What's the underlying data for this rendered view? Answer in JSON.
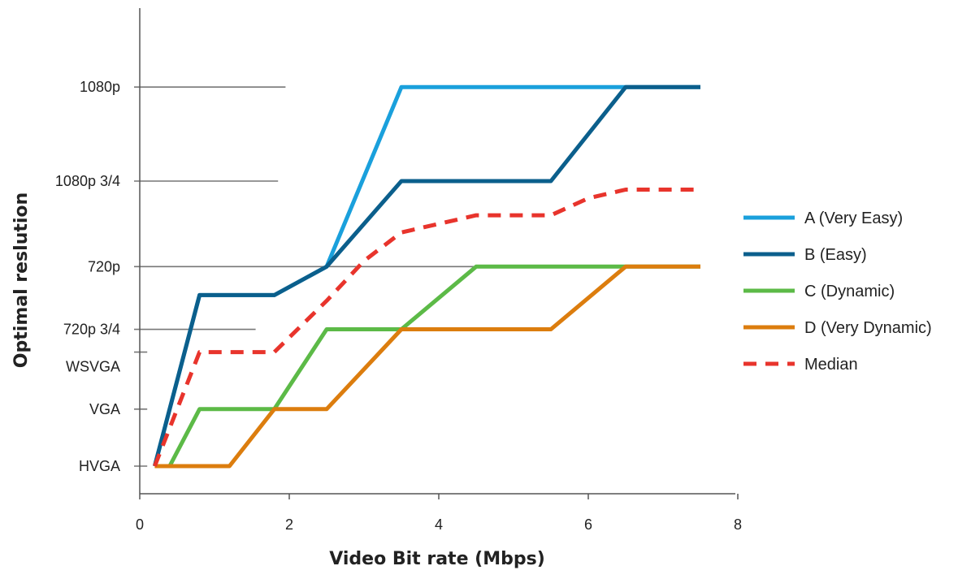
{
  "chart_data": {
    "type": "line",
    "title": "",
    "xlabel": "Video Bit rate (Mbps)",
    "ylabel": "Optimal reslution",
    "xlim": [
      0,
      8
    ],
    "x_ticks": [
      "0",
      "2",
      "4",
      "6",
      "8"
    ],
    "y_categories": [
      {
        "label": "HVGA",
        "level": 0
      },
      {
        "label": "VGA",
        "level": 1
      },
      {
        "label": "WSVGA",
        "level": 2
      },
      {
        "label": "720p 3/4",
        "level": 2.4
      },
      {
        "label": "720p",
        "level": 3.5
      },
      {
        "label": "1080p 3/4",
        "level": 5.0
      },
      {
        "label": "1080p",
        "level": 6.65
      }
    ],
    "series": [
      {
        "name": "A (Very Easy)",
        "color": "#1aa0dc",
        "dash": false,
        "points": [
          [
            0.2,
            0
          ],
          [
            0.8,
            3.0
          ],
          [
            1.8,
            3.0
          ],
          [
            2.5,
            3.5
          ],
          [
            3.5,
            6.65
          ],
          [
            6.5,
            6.65
          ],
          [
            7.5,
            6.65
          ]
        ]
      },
      {
        "name": "B (Easy)",
        "color": "#0b5f8c",
        "dash": false,
        "points": [
          [
            0.2,
            0
          ],
          [
            0.8,
            3.0
          ],
          [
            1.8,
            3.0
          ],
          [
            2.5,
            3.5
          ],
          [
            3.5,
            5.0
          ],
          [
            5.5,
            5.0
          ],
          [
            6.5,
            6.65
          ],
          [
            7.5,
            6.65
          ]
        ]
      },
      {
        "name": "C (Dynamic)",
        "color": "#5cba47",
        "dash": false,
        "points": [
          [
            0.4,
            0
          ],
          [
            0.8,
            1.0
          ],
          [
            1.8,
            1.0
          ],
          [
            2.5,
            2.4
          ],
          [
            3.5,
            2.4
          ],
          [
            4.5,
            3.5
          ],
          [
            7.5,
            3.5
          ]
        ]
      },
      {
        "name": "D (Very Dynamic)",
        "color": "#dc7d0e",
        "dash": false,
        "points": [
          [
            0.2,
            0
          ],
          [
            1.2,
            0
          ],
          [
            1.8,
            1.0
          ],
          [
            2.5,
            1.0
          ],
          [
            3.5,
            2.4
          ],
          [
            5.5,
            2.4
          ],
          [
            6.5,
            3.5
          ],
          [
            7.5,
            3.5
          ]
        ]
      },
      {
        "name": "Median",
        "color": "#e8342c",
        "dash": true,
        "points": [
          [
            0.2,
            0
          ],
          [
            0.8,
            2.0
          ],
          [
            1.8,
            2.0
          ],
          [
            2.5,
            2.9
          ],
          [
            3.0,
            3.6
          ],
          [
            3.5,
            4.1
          ],
          [
            4.5,
            4.4
          ],
          [
            5.5,
            4.4
          ],
          [
            6.0,
            4.7
          ],
          [
            6.5,
            4.85
          ],
          [
            7.5,
            4.85
          ]
        ]
      }
    ],
    "grid": false,
    "legend_position": "right"
  }
}
